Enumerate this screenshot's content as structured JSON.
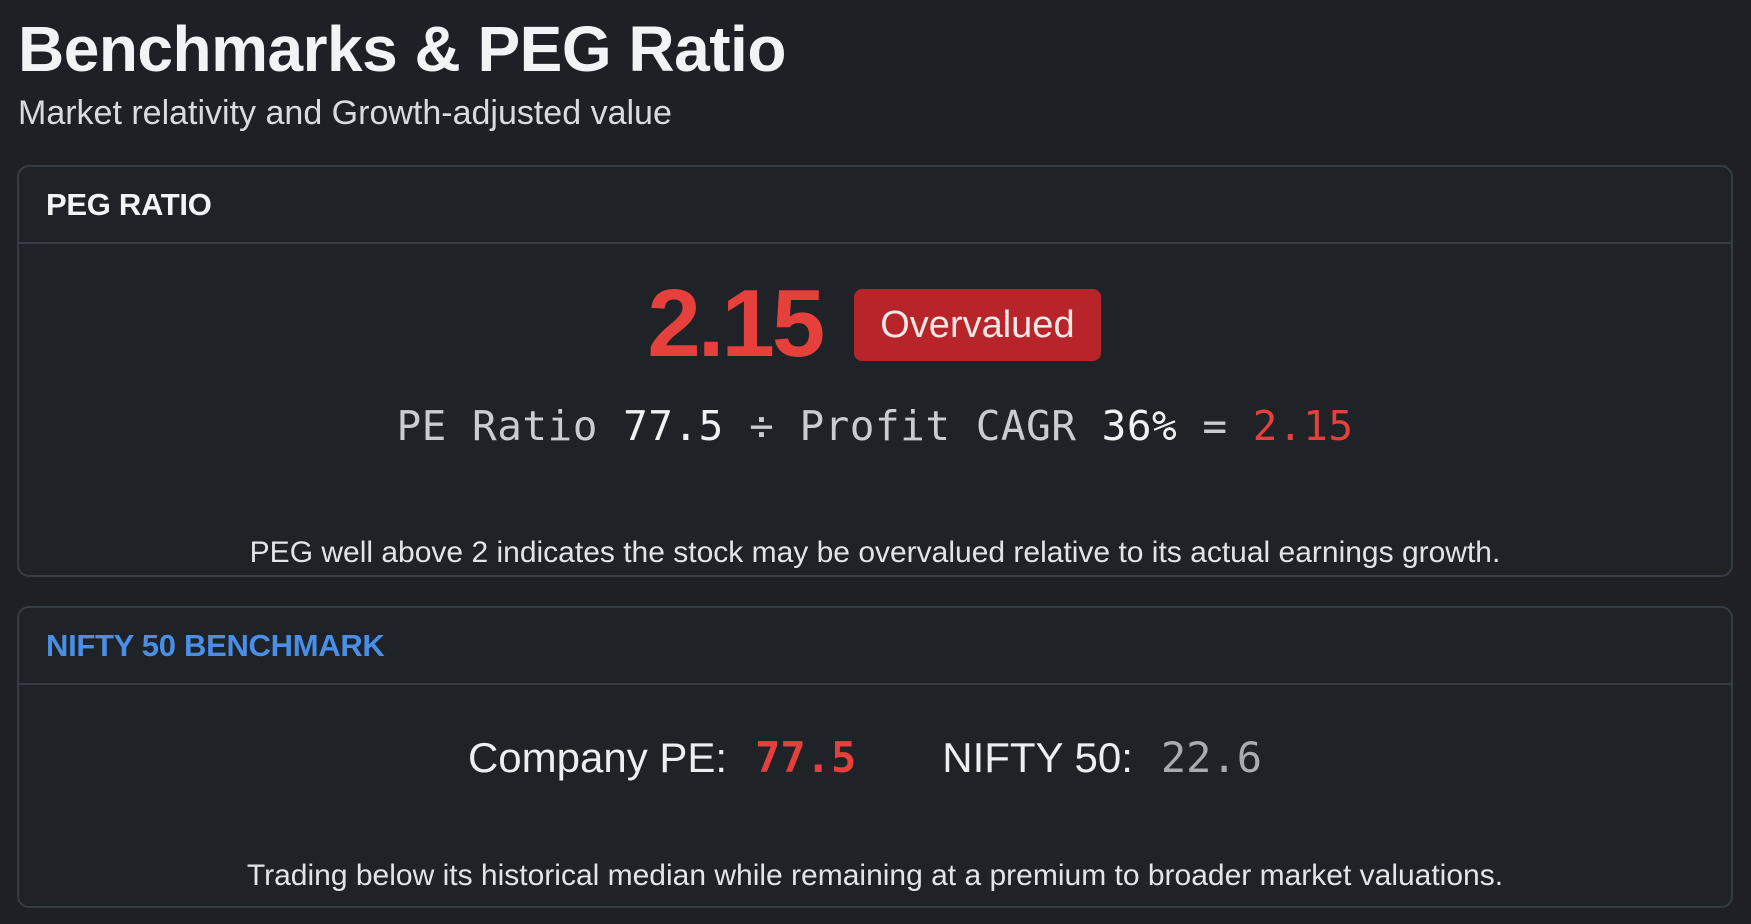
{
  "header": {
    "title": "Benchmarks & PEG Ratio",
    "subtitle": "Market relativity and Growth-adjusted value"
  },
  "peg_card": {
    "title": "PEG RATIO",
    "value": "2.15",
    "badge": "Overvalued",
    "formula": {
      "pe_label": "PE Ratio",
      "pe_value": "77.5",
      "operator": "÷",
      "growth_label": "Profit CAGR",
      "growth_value": "36%",
      "equals": "=",
      "result": "2.15"
    },
    "note": "PEG well above 2 indicates the stock may be overvalued relative to its actual earnings growth."
  },
  "nifty_card": {
    "title": "NIFTY 50 BENCHMARK",
    "company_pe_label": "Company PE:",
    "company_pe_value": "77.5",
    "nifty_pe_label": "NIFTY 50:",
    "nifty_pe_value": "22.6",
    "note": "Trading below its historical median while remaining at a premium to broader market valuations."
  },
  "colors": {
    "background": "#1e2025",
    "card_border": "#363c46",
    "danger": "#e5403b",
    "badge": "#b7252a",
    "accent_blue": "#4a8fe7",
    "muted": "#a8abb1"
  }
}
